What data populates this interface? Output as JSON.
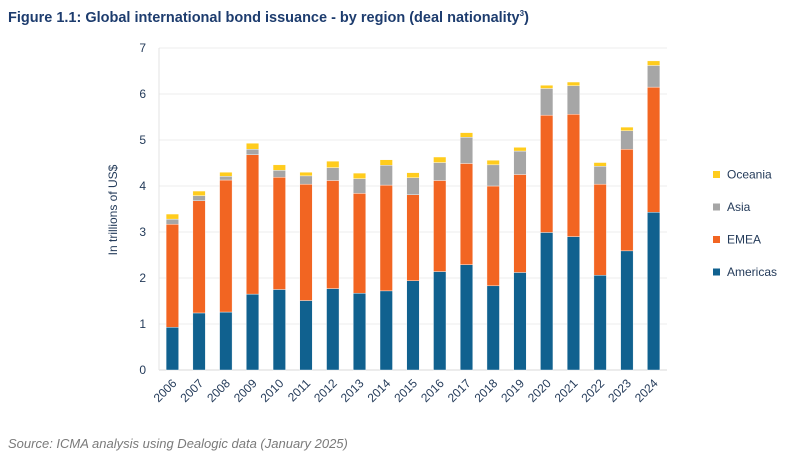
{
  "title": "Figure 1.1: Global international bond issuance - by region (deal nationality",
  "title_superscript": "3",
  "title_suffix": ")",
  "source": "Source: ICMA analysis using Dealogic data (January 2025)",
  "chart_data": {
    "type": "bar",
    "stacked": true,
    "title": "Global international bond issuance - by region (deal nationality)",
    "xlabel": "",
    "ylabel": "In trillions of US$",
    "ylim": [
      0,
      7
    ],
    "yticks": [
      "0",
      "1",
      "2",
      "3",
      "4",
      "5",
      "6",
      "7"
    ],
    "grid": true,
    "legend_position": "right",
    "categories": [
      "2006",
      "2007",
      "2008",
      "2009",
      "2010",
      "2011",
      "2012",
      "2013",
      "2014",
      "2015",
      "2016",
      "2017",
      "2018",
      "2019",
      "2020",
      "2021",
      "2022",
      "2023",
      "2024"
    ],
    "series": [
      {
        "name": "Americas",
        "color": "#10618f",
        "values": [
          0.93,
          1.24,
          1.26,
          1.65,
          1.75,
          1.51,
          1.77,
          1.67,
          1.72,
          1.94,
          2.14,
          2.29,
          1.83,
          2.12,
          2.99,
          2.9,
          2.06,
          2.59,
          3.43
        ]
      },
      {
        "name": "EMEA",
        "color": "#f26522",
        "values": [
          2.24,
          2.44,
          2.87,
          3.03,
          2.44,
          2.53,
          2.35,
          2.17,
          2.3,
          1.87,
          1.98,
          2.2,
          2.17,
          2.13,
          2.55,
          2.66,
          1.98,
          2.21,
          2.72
        ]
      },
      {
        "name": "Asia",
        "color": "#a6a6a6",
        "values": [
          0.11,
          0.11,
          0.08,
          0.12,
          0.15,
          0.18,
          0.28,
          0.32,
          0.43,
          0.37,
          0.39,
          0.57,
          0.46,
          0.51,
          0.58,
          0.62,
          0.39,
          0.4,
          0.47
        ]
      },
      {
        "name": "Oceania",
        "color": "#ffcc1d",
        "values": [
          0.11,
          0.1,
          0.09,
          0.13,
          0.12,
          0.08,
          0.14,
          0.12,
          0.12,
          0.11,
          0.12,
          0.1,
          0.1,
          0.08,
          0.07,
          0.08,
          0.08,
          0.08,
          0.1
        ]
      }
    ],
    "legend": [
      "Oceania",
      "Asia",
      "EMEA",
      "Americas"
    ]
  }
}
